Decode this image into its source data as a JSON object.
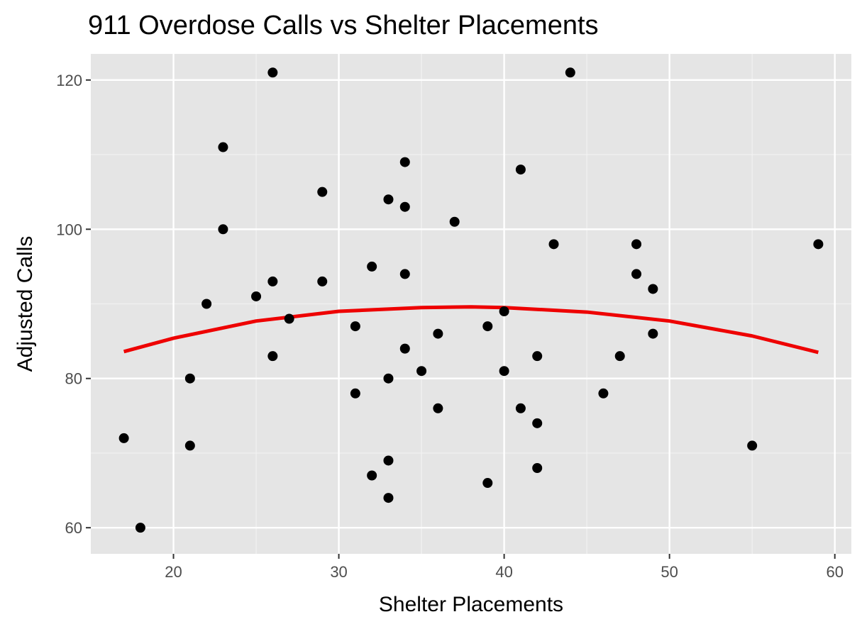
{
  "chart_data": {
    "type": "scatter",
    "title": "911 Overdose Calls vs Shelter Placements",
    "xlabel": "Shelter Placements",
    "ylabel": "Adjusted Calls",
    "xlim": [
      15,
      61
    ],
    "ylim": [
      56.5,
      123.5
    ],
    "x_ticks": [
      20,
      30,
      40,
      50,
      60
    ],
    "y_ticks": [
      60,
      80,
      100,
      120
    ],
    "x_minor_ticks": [
      25,
      35,
      45,
      55
    ],
    "y_minor_ticks": [
      70,
      90,
      110
    ],
    "grid": true,
    "points": [
      {
        "x": 17,
        "y": 72
      },
      {
        "x": 18,
        "y": 60
      },
      {
        "x": 21,
        "y": 80
      },
      {
        "x": 21,
        "y": 71
      },
      {
        "x": 22,
        "y": 90
      },
      {
        "x": 23,
        "y": 111
      },
      {
        "x": 23,
        "y": 100
      },
      {
        "x": 25,
        "y": 91
      },
      {
        "x": 26,
        "y": 121
      },
      {
        "x": 26,
        "y": 93
      },
      {
        "x": 26,
        "y": 83
      },
      {
        "x": 27,
        "y": 88
      },
      {
        "x": 29,
        "y": 105
      },
      {
        "x": 29,
        "y": 93
      },
      {
        "x": 31,
        "y": 87
      },
      {
        "x": 31,
        "y": 78
      },
      {
        "x": 32,
        "y": 95
      },
      {
        "x": 32,
        "y": 67
      },
      {
        "x": 33,
        "y": 104
      },
      {
        "x": 33,
        "y": 80
      },
      {
        "x": 33,
        "y": 69
      },
      {
        "x": 33,
        "y": 64
      },
      {
        "x": 34,
        "y": 109
      },
      {
        "x": 34,
        "y": 103
      },
      {
        "x": 34,
        "y": 94
      },
      {
        "x": 34,
        "y": 84
      },
      {
        "x": 35,
        "y": 81
      },
      {
        "x": 36,
        "y": 86
      },
      {
        "x": 36,
        "y": 76
      },
      {
        "x": 37,
        "y": 101
      },
      {
        "x": 39,
        "y": 87
      },
      {
        "x": 39,
        "y": 66
      },
      {
        "x": 40,
        "y": 89
      },
      {
        "x": 40,
        "y": 81
      },
      {
        "x": 41,
        "y": 108
      },
      {
        "x": 41,
        "y": 76
      },
      {
        "x": 42,
        "y": 83
      },
      {
        "x": 42,
        "y": 74
      },
      {
        "x": 42,
        "y": 68
      },
      {
        "x": 43,
        "y": 98
      },
      {
        "x": 44,
        "y": 121
      },
      {
        "x": 46,
        "y": 78
      },
      {
        "x": 47,
        "y": 83
      },
      {
        "x": 48,
        "y": 98
      },
      {
        "x": 48,
        "y": 94
      },
      {
        "x": 49,
        "y": 92
      },
      {
        "x": 49,
        "y": 86
      },
      {
        "x": 55,
        "y": 71
      },
      {
        "x": 59,
        "y": 98
      }
    ],
    "trend_line": {
      "type": "quadratic",
      "color": "#ee0000",
      "x_range": [
        17,
        59
      ],
      "points": [
        {
          "x": 17,
          "y": 83.6
        },
        {
          "x": 20,
          "y": 85.4
        },
        {
          "x": 25,
          "y": 87.7
        },
        {
          "x": 30,
          "y": 89.0
        },
        {
          "x": 35,
          "y": 89.5
        },
        {
          "x": 38,
          "y": 89.6
        },
        {
          "x": 40,
          "y": 89.5
        },
        {
          "x": 45,
          "y": 88.9
        },
        {
          "x": 50,
          "y": 87.7
        },
        {
          "x": 55,
          "y": 85.7
        },
        {
          "x": 59,
          "y": 83.5
        }
      ]
    },
    "colors": {
      "panel_background": "#e5e5e5",
      "grid_major": "#ffffff",
      "grid_minor": "#f2f2f2",
      "point": "#000000",
      "tick_text": "#4d4d4d"
    }
  }
}
